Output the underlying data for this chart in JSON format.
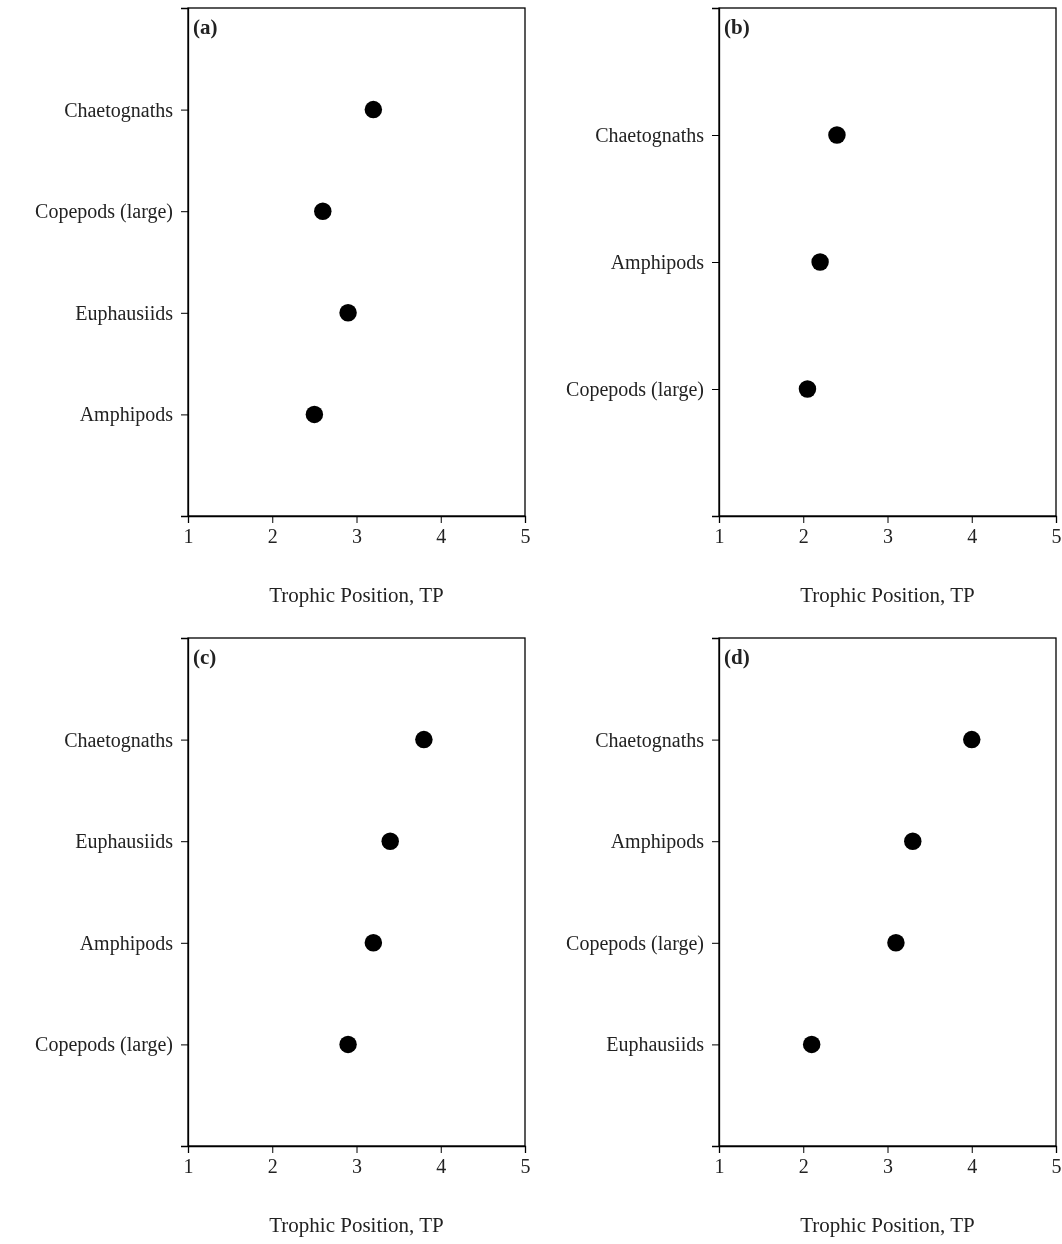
{
  "chart_data": [
    {
      "type": "scatter",
      "title": "(a)",
      "xlabel": "Trophic Position, TP",
      "orientation": "horizontal",
      "categories": [
        "Chaetognaths",
        "Copepods (large)",
        "Euphausiids",
        "Amphipods"
      ],
      "values": [
        3.2,
        2.6,
        2.9,
        2.5
      ],
      "color": "#000000",
      "marker": "circle",
      "xlim": [
        1,
        5
      ],
      "xticks": [
        1,
        2,
        3,
        4,
        5
      ]
    },
    {
      "type": "scatter",
      "title": "(b)",
      "xlabel": "Trophic Position, TP",
      "orientation": "horizontal",
      "categories": [
        "Chaetognaths",
        "Amphipods",
        "Copepods (large)"
      ],
      "values": [
        2.4,
        2.2,
        2.05
      ],
      "color": "#000000",
      "marker": "circle",
      "xlim": [
        1,
        5
      ],
      "xticks": [
        1,
        2,
        3,
        4,
        5
      ]
    },
    {
      "type": "scatter",
      "title": "(c)",
      "xlabel": "Trophic Position, TP",
      "orientation": "horizontal",
      "categories": [
        "Chaetognaths",
        "Euphausiids",
        "Amphipods",
        "Copepods (large)"
      ],
      "values": [
        3.8,
        3.4,
        3.2,
        2.9
      ],
      "color": "#000000",
      "marker": "circle",
      "xlim": [
        1,
        5
      ],
      "xticks": [
        1,
        2,
        3,
        4,
        5
      ]
    },
    {
      "type": "scatter",
      "title": "(d)",
      "xlabel": "Trophic Position, TP",
      "orientation": "horizontal",
      "categories": [
        "Chaetognaths",
        "Amphipods",
        "Copepods (large)",
        "Euphausiids"
      ],
      "values": [
        4.0,
        3.3,
        3.1,
        2.1
      ],
      "color": "#000000",
      "marker": "circle",
      "xlim": [
        1,
        5
      ],
      "xticks": [
        1,
        2,
        3,
        4,
        5
      ]
    }
  ]
}
